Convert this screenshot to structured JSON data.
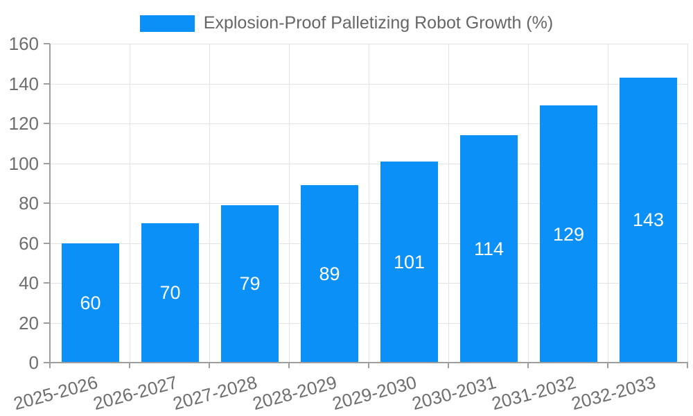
{
  "page": {
    "background": "#ffffff"
  },
  "legend": {
    "label": "Explosion-Proof Palletizing Robot Growth (%)"
  },
  "chart_data": {
    "type": "bar",
    "title": "Explosion-Proof Palletizing Robot Growth (%)",
    "categories": [
      "2025-2026",
      "2026-2027",
      "2027-2028",
      "2028-2029",
      "2029-2030",
      "2030-2031",
      "2031-2032",
      "2032-2033"
    ],
    "values": [
      60,
      70,
      79,
      89,
      101,
      114,
      129,
      143
    ],
    "xlabel": "",
    "ylabel": "",
    "ylim": [
      0,
      160
    ],
    "yticks": [
      0,
      20,
      40,
      60,
      80,
      100,
      120,
      140,
      160
    ],
    "grid": true,
    "legend_position": "top",
    "x_label_rotation_deg": -15,
    "colors": {
      "bar": "#0b90f8",
      "value_label": "#ffffff",
      "axis_text": "#6e6e6e",
      "legend_text": "#666666",
      "gridline": "#e3e3e3",
      "axis_line": "#9e9e9e"
    }
  }
}
